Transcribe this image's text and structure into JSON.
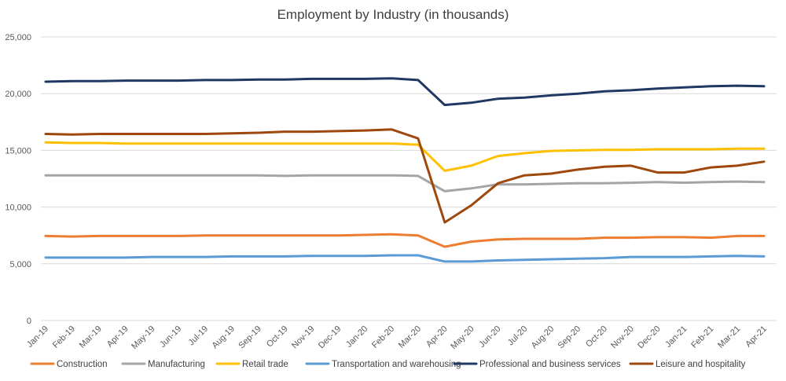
{
  "chart_data": {
    "type": "line",
    "title": "Employment by Industry (in thousands)",
    "xlabel": "",
    "ylabel": "",
    "ylim": [
      0,
      25000
    ],
    "yticks": [
      0,
      5000,
      10000,
      15000,
      20000,
      25000
    ],
    "ytick_labels": [
      "0",
      "5,000",
      "10,000",
      "15,000",
      "20,000",
      "25,000"
    ],
    "grid": true,
    "legend_position": "bottom",
    "categories": [
      "Jan-19",
      "Feb-19",
      "Mar-19",
      "Apr-19",
      "May-19",
      "Jun-19",
      "Jul-19",
      "Aug-19",
      "Sep-19",
      "Oct-19",
      "Nov-19",
      "Dec-19",
      "Jan-20",
      "Feb-20",
      "Mar-20",
      "Apr-20",
      "May-20",
      "Jun-20",
      "Jul-20",
      "Aug-20",
      "Sep-20",
      "Oct-20",
      "Nov-20",
      "Dec-20",
      "Jan-21",
      "Feb-21",
      "Mar-21",
      "Apr-21"
    ],
    "series": [
      {
        "name": "Construction",
        "color": "#ed7d31",
        "values": [
          7450,
          7400,
          7450,
          7450,
          7450,
          7450,
          7500,
          7500,
          7500,
          7500,
          7500,
          7500,
          7550,
          7600,
          7500,
          6500,
          6950,
          7150,
          7200,
          7200,
          7200,
          7300,
          7300,
          7350,
          7350,
          7300,
          7450,
          7450
        ]
      },
      {
        "name": "Manufacturing",
        "color": "#a5a5a5",
        "values": [
          12800,
          12800,
          12800,
          12800,
          12800,
          12800,
          12800,
          12800,
          12800,
          12750,
          12800,
          12800,
          12800,
          12800,
          12750,
          11400,
          11650,
          12000,
          12000,
          12050,
          12100,
          12100,
          12150,
          12200,
          12150,
          12200,
          12250,
          12200
        ]
      },
      {
        "name": "Retail trade",
        "color": "#ffc000",
        "values": [
          15700,
          15650,
          15650,
          15600,
          15600,
          15600,
          15600,
          15600,
          15600,
          15600,
          15600,
          15600,
          15600,
          15600,
          15500,
          13200,
          13650,
          14500,
          14750,
          14950,
          15000,
          15050,
          15050,
          15100,
          15100,
          15100,
          15150,
          15150
        ]
      },
      {
        "name": "Transportation and warehousing",
        "color": "#5b9bd5",
        "values": [
          5550,
          5550,
          5550,
          5550,
          5600,
          5600,
          5600,
          5650,
          5650,
          5650,
          5700,
          5700,
          5700,
          5750,
          5750,
          5200,
          5200,
          5300,
          5350,
          5400,
          5450,
          5500,
          5600,
          5600,
          5600,
          5650,
          5700,
          5650
        ]
      },
      {
        "name": "Professional and business services",
        "color": "#203864",
        "values": [
          21050,
          21100,
          21100,
          21150,
          21150,
          21150,
          21200,
          21200,
          21250,
          21250,
          21300,
          21300,
          21300,
          21350,
          21200,
          19000,
          19200,
          19550,
          19650,
          19850,
          20000,
          20200,
          20300,
          20450,
          20550,
          20650,
          20700,
          20650
        ]
      },
      {
        "name": "Leisure and hospitality",
        "color": "#9e480e",
        "values": [
          16450,
          16400,
          16450,
          16450,
          16450,
          16450,
          16450,
          16500,
          16550,
          16650,
          16650,
          16700,
          16750,
          16850,
          16050,
          8650,
          10150,
          12100,
          12800,
          12950,
          13300,
          13550,
          13650,
          13050,
          13050,
          13500,
          13650,
          14000
        ]
      }
    ]
  }
}
